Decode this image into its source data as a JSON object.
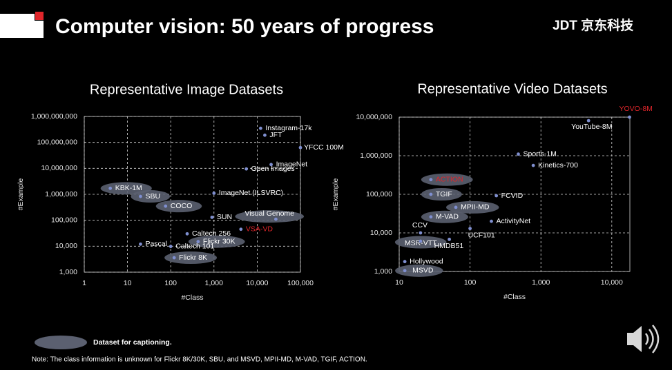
{
  "title": "Computer vision: 50 years of progress",
  "logo": "JDT 京东科技",
  "legend_label": "Dataset for captioning.",
  "note": "Note: The class information is unknown for Flickr 8K/30K, SBU, and MSVD, MPII-MD, M-VAD, TGIF, ACTION.",
  "chart_data": [
    {
      "type": "scatter",
      "title": "Representative Image Datasets",
      "x_label": "#Class",
      "y_label": "#Example",
      "xscale": "log",
      "yscale": "log",
      "grid": true,
      "point_color": "#7f8fd0",
      "label_color": "#ffffff",
      "highlight_color": "#e0262b",
      "caption_color": "#5b6070",
      "xlim": [
        1,
        100000
      ],
      "xticks": [
        1,
        10,
        100,
        {
          "value": 1000,
          "label": "1,000"
        },
        {
          "value": 10000,
          "label": "10,000"
        },
        {
          "value": 100000,
          "label": "100,000"
        }
      ],
      "ylim": [
        1000,
        1000000000
      ],
      "yticks": [
        {
          "value": 1000,
          "label": "1,000"
        },
        {
          "value": 10000,
          "label": "10,000"
        },
        {
          "value": 100000,
          "label": "100,000"
        },
        {
          "value": 1000000,
          "label": "1,000,000"
        },
        {
          "value": 10000000,
          "label": "10,000,000"
        },
        {
          "value": 100000000,
          "label": "100,000,000"
        },
        {
          "value": 1000000000,
          "label": "1,000,000,000"
        }
      ],
      "points": [
        {
          "label": "Instagram-17k",
          "x": 12000,
          "y": 350000000,
          "captioning": false,
          "highlight": false
        },
        {
          "label": "JFT",
          "x": 15000,
          "y": 190000000,
          "captioning": false,
          "highlight": false
        },
        {
          "label": "YFCC 100M",
          "x": 100000,
          "y": 63000000,
          "captioning": false,
          "highlight": false
        },
        {
          "label": "ImageNet",
          "x": 21000,
          "y": 14000000,
          "captioning": false,
          "highlight": false
        },
        {
          "label": "Open Images",
          "x": 5600,
          "y": 9500000,
          "captioning": false,
          "highlight": false
        },
        {
          "label": "KBK-1M",
          "x": 4,
          "y": 1700000,
          "captioning": true,
          "highlight": false
        },
        {
          "label": "SBU",
          "x": 20,
          "y": 830000,
          "captioning": true,
          "highlight": false
        },
        {
          "label": "ImageNet (ILSVRC)",
          "x": 1000,
          "y": 1100000,
          "captioning": false,
          "highlight": false
        },
        {
          "label": "COCO",
          "x": 76,
          "y": 350000,
          "captioning": true,
          "highlight": false
        },
        {
          "label": "SUN",
          "x": 900,
          "y": 130000,
          "captioning": false,
          "highlight": false
        },
        {
          "label": "Visual Genome",
          "x": 27000,
          "y": 110000,
          "captioning": true,
          "highlight": false
        },
        {
          "label": "VSA-VD",
          "x": 4200,
          "y": 45000,
          "captioning": false,
          "highlight": true
        },
        {
          "label": "Caltech 256",
          "x": 240,
          "y": 30000,
          "captioning": false,
          "highlight": false
        },
        {
          "label": "Flickr 30K",
          "x": 430,
          "y": 15000,
          "captioning": true,
          "highlight": false
        },
        {
          "label": "Pascal",
          "x": 20,
          "y": 12000,
          "captioning": false,
          "highlight": false
        },
        {
          "label": "Caltech 101",
          "x": 100,
          "y": 9800,
          "captioning": false,
          "highlight": false
        },
        {
          "label": "Flickr 8K",
          "x": 120,
          "y": 3600,
          "captioning": true,
          "highlight": false
        }
      ]
    },
    {
      "type": "scatter",
      "title": "Representative Video Datasets",
      "x_label": "#Class",
      "y_label": "#Example",
      "xscale": "log",
      "yscale": "log",
      "grid": true,
      "point_color": "#7f8fd0",
      "label_color": "#ffffff",
      "highlight_color": "#e0262b",
      "caption_color": "#5b6070",
      "xlim": [
        10,
        18000
      ],
      "xticks": [
        10,
        100,
        {
          "value": 1000,
          "label": "1,000"
        },
        {
          "value": 10000,
          "label": "10,000"
        }
      ],
      "ylim": [
        1000,
        10000000
      ],
      "yticks": [
        {
          "value": 1000,
          "label": "1,000"
        },
        {
          "value": 10000,
          "label": "10,000"
        },
        {
          "value": 100000,
          "label": "100,000"
        },
        {
          "value": 1000000,
          "label": "1,000,000"
        },
        {
          "value": 10000000,
          "label": "10,000,000"
        }
      ],
      "points": [
        {
          "label": "YOVO-8M",
          "x": 17800,
          "y": 10000000,
          "captioning": false,
          "highlight": true
        },
        {
          "label": "YouTube-8M",
          "x": 4700,
          "y": 8100000,
          "captioning": false,
          "highlight": false
        },
        {
          "label": "Sports-1M",
          "x": 480,
          "y": 1100000,
          "captioning": false,
          "highlight": false
        },
        {
          "label": "Kinetics-700",
          "x": 780,
          "y": 560000,
          "captioning": false,
          "highlight": false
        },
        {
          "label": "ACTION",
          "x": 28,
          "y": 240000,
          "captioning": true,
          "highlight": true
        },
        {
          "label": "TGIF",
          "x": 28,
          "y": 100000,
          "captioning": true,
          "highlight": false
        },
        {
          "label": "FCVID",
          "x": 235,
          "y": 92000,
          "captioning": false,
          "highlight": false
        },
        {
          "label": "MPII-MD",
          "x": 63,
          "y": 46000,
          "captioning": true,
          "highlight": false
        },
        {
          "label": "M-VAD",
          "x": 28,
          "y": 26000,
          "captioning": true,
          "highlight": false
        },
        {
          "label": "ActivityNet",
          "x": 200,
          "y": 20000,
          "captioning": false,
          "highlight": false
        },
        {
          "label": "UCF101",
          "x": 100,
          "y": 13000,
          "captioning": false,
          "highlight": false
        },
        {
          "label": "CCV",
          "x": 20,
          "y": 10000,
          "captioning": false,
          "highlight": false
        },
        {
          "label": "MSR-VTT",
          "x": 20,
          "y": 6100,
          "captioning": true,
          "highlight": false
        },
        {
          "label": "HMDB51",
          "x": 51,
          "y": 6800,
          "captioning": false,
          "highlight": false
        },
        {
          "label": "Hollywood",
          "x": 12,
          "y": 1800,
          "captioning": false,
          "highlight": false
        },
        {
          "label": "MSVD",
          "x": 12,
          "y": 1050,
          "captioning": true,
          "highlight": false
        }
      ]
    }
  ]
}
